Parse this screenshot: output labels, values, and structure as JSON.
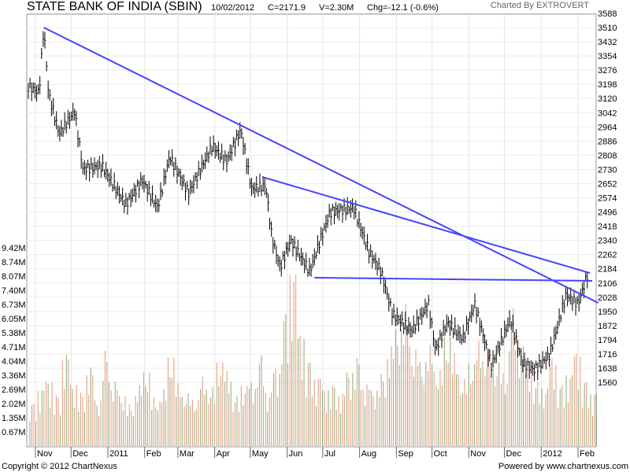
{
  "header": {
    "title": "STATE BANK OF INDIA (SBIN)",
    "date": "10/02/2012",
    "close": "C=2171.9",
    "volume": "V=2.30M",
    "change": "Chg=-12.1 (-0.6%)",
    "credit": "Charted By EXTROVERT"
  },
  "footer": {
    "copyright": "Copyright © 2012 ChartNexus",
    "powered": "Powered by www.chartnexus.com"
  },
  "chart_data": {
    "type": "line",
    "subtype": "ohlc-price-with-volume",
    "price_axis": {
      "ticks": [
        3588,
        3510,
        3432,
        3354,
        3276,
        3198,
        3120,
        3042,
        2964,
        2886,
        2808,
        2730,
        2652,
        2574,
        2496,
        2418,
        2340,
        2262,
        2184,
        2106,
        2028,
        1950,
        1872,
        1794,
        1716,
        1638,
        1560
      ],
      "range": [
        1560,
        3588
      ],
      "position": "right"
    },
    "volume_axis": {
      "ticks": [
        "9.42M",
        "8.74M",
        "8.07M",
        "7.40M",
        "6.73M",
        "6.05M",
        "5.38M",
        "4.71M",
        "4.04M",
        "3.36M",
        "2.69M",
        "2.02M",
        "1.35M",
        "0.67M"
      ],
      "range_millions": [
        0,
        9.42
      ],
      "position": "left"
    },
    "x_axis": {
      "ticks": [
        {
          "label": "Nov",
          "date": "2010-11-01"
        },
        {
          "label": "Dec",
          "date": "2010-12-01"
        },
        {
          "label": "2011",
          "date": "2011-01-01"
        },
        {
          "label": "Feb",
          "date": "2011-02-01"
        },
        {
          "label": "Mar",
          "date": "2011-03-01"
        },
        {
          "label": "Apr",
          "date": "2011-04-01"
        },
        {
          "label": "May",
          "date": "2011-05-01"
        },
        {
          "label": "Jun",
          "date": "2011-06-01"
        },
        {
          "label": "Jul",
          "date": "2011-07-01"
        },
        {
          "label": "Aug",
          "date": "2011-08-01"
        },
        {
          "label": "Sep",
          "date": "2011-09-01"
        },
        {
          "label": "Oct",
          "date": "2011-10-01"
        },
        {
          "label": "Nov",
          "date": "2011-11-01"
        },
        {
          "label": "Dec",
          "date": "2011-12-01"
        },
        {
          "label": "2012",
          "date": "2012-01-01"
        },
        {
          "label": "Feb",
          "date": "2012-02-01"
        }
      ],
      "range": [
        "2010-10-25",
        "2012-02-18"
      ]
    },
    "grid": true,
    "price_color": "#000000",
    "trendline_color": "#4444ff",
    "volume_colors": {
      "up": "#88aa77",
      "down": "#dd9977"
    },
    "close_series": [
      [
        "2010-10-26",
        3186
      ],
      [
        "2010-11-04",
        3150
      ],
      [
        "2010-11-08",
        3510
      ],
      [
        "2010-11-12",
        3150
      ],
      [
        "2010-11-21",
        2926
      ],
      [
        "2010-12-04",
        3050
      ],
      [
        "2010-12-11",
        2732
      ],
      [
        "2010-12-27",
        2750
      ],
      [
        "2011-01-16",
        2537
      ],
      [
        "2011-01-30",
        2670
      ],
      [
        "2011-02-12",
        2520
      ],
      [
        "2011-02-22",
        2800
      ],
      [
        "2011-03-10",
        2600
      ],
      [
        "2011-03-30",
        2860
      ],
      [
        "2011-04-11",
        2775
      ],
      [
        "2011-04-23",
        2948
      ],
      [
        "2011-05-02",
        2624
      ],
      [
        "2011-05-14",
        2640
      ],
      [
        "2011-05-19",
        2364
      ],
      [
        "2011-05-26",
        2191
      ],
      [
        "2011-06-04",
        2340
      ],
      [
        "2011-06-20",
        2170
      ],
      [
        "2011-07-07",
        2494
      ],
      [
        "2011-07-27",
        2520
      ],
      [
        "2011-08-09",
        2277
      ],
      [
        "2011-08-19",
        2170
      ],
      [
        "2011-08-29",
        1932
      ],
      [
        "2011-09-14",
        1845
      ],
      [
        "2011-09-28",
        1990
      ],
      [
        "2011-10-04",
        1738
      ],
      [
        "2011-10-14",
        1890
      ],
      [
        "2011-10-27",
        1800
      ],
      [
        "2011-11-06",
        1990
      ],
      [
        "2011-11-20",
        1651
      ],
      [
        "2011-12-06",
        1910
      ],
      [
        "2011-12-16",
        1670
      ],
      [
        "2011-12-26",
        1627
      ],
      [
        "2012-01-08",
        1710
      ],
      [
        "2012-01-22",
        2040
      ],
      [
        "2012-02-01",
        1990
      ],
      [
        "2012-02-10",
        2171.9
      ]
    ],
    "volume_millions": [
      2.1,
      2.8,
      3.2,
      2.5,
      4.5,
      3.0,
      2.6,
      3.8,
      2.2,
      4.6,
      3.1,
      2.4,
      2.0,
      2.9,
      3.5,
      2.3,
      2.7,
      4.2,
      3.0,
      2.5,
      2.2,
      3.3,
      2.8,
      4.0,
      3.6,
      2.4,
      2.9,
      3.1,
      4.4,
      2.6,
      3.8,
      6.5,
      8.5,
      5.5,
      4.2,
      3.4,
      2.8,
      3.0,
      2.6,
      3.6,
      4.3,
      3.0,
      2.7,
      3.5,
      4.8,
      5.6,
      6.8,
      4.6,
      4.0,
      4.8,
      3.6,
      5.2,
      4.4,
      3.2,
      3.9,
      5.0,
      4.6,
      4.0,
      3.5,
      6.6,
      4.8,
      3.9,
      3.1,
      2.8,
      4.3,
      3.0,
      3.5,
      4.6,
      3.2,
      2.6
    ],
    "trendlines": [
      {
        "start": [
          "2010-11-08",
          3510
        ],
        "end": [
          "2012-02-18",
          1997
        ]
      },
      {
        "start": [
          "2011-05-11",
          2689
        ],
        "end": [
          "2012-02-11",
          2161
        ]
      },
      {
        "start": [
          "2011-06-24",
          2135
        ],
        "end": [
          "2012-02-13",
          2118
        ]
      }
    ]
  }
}
